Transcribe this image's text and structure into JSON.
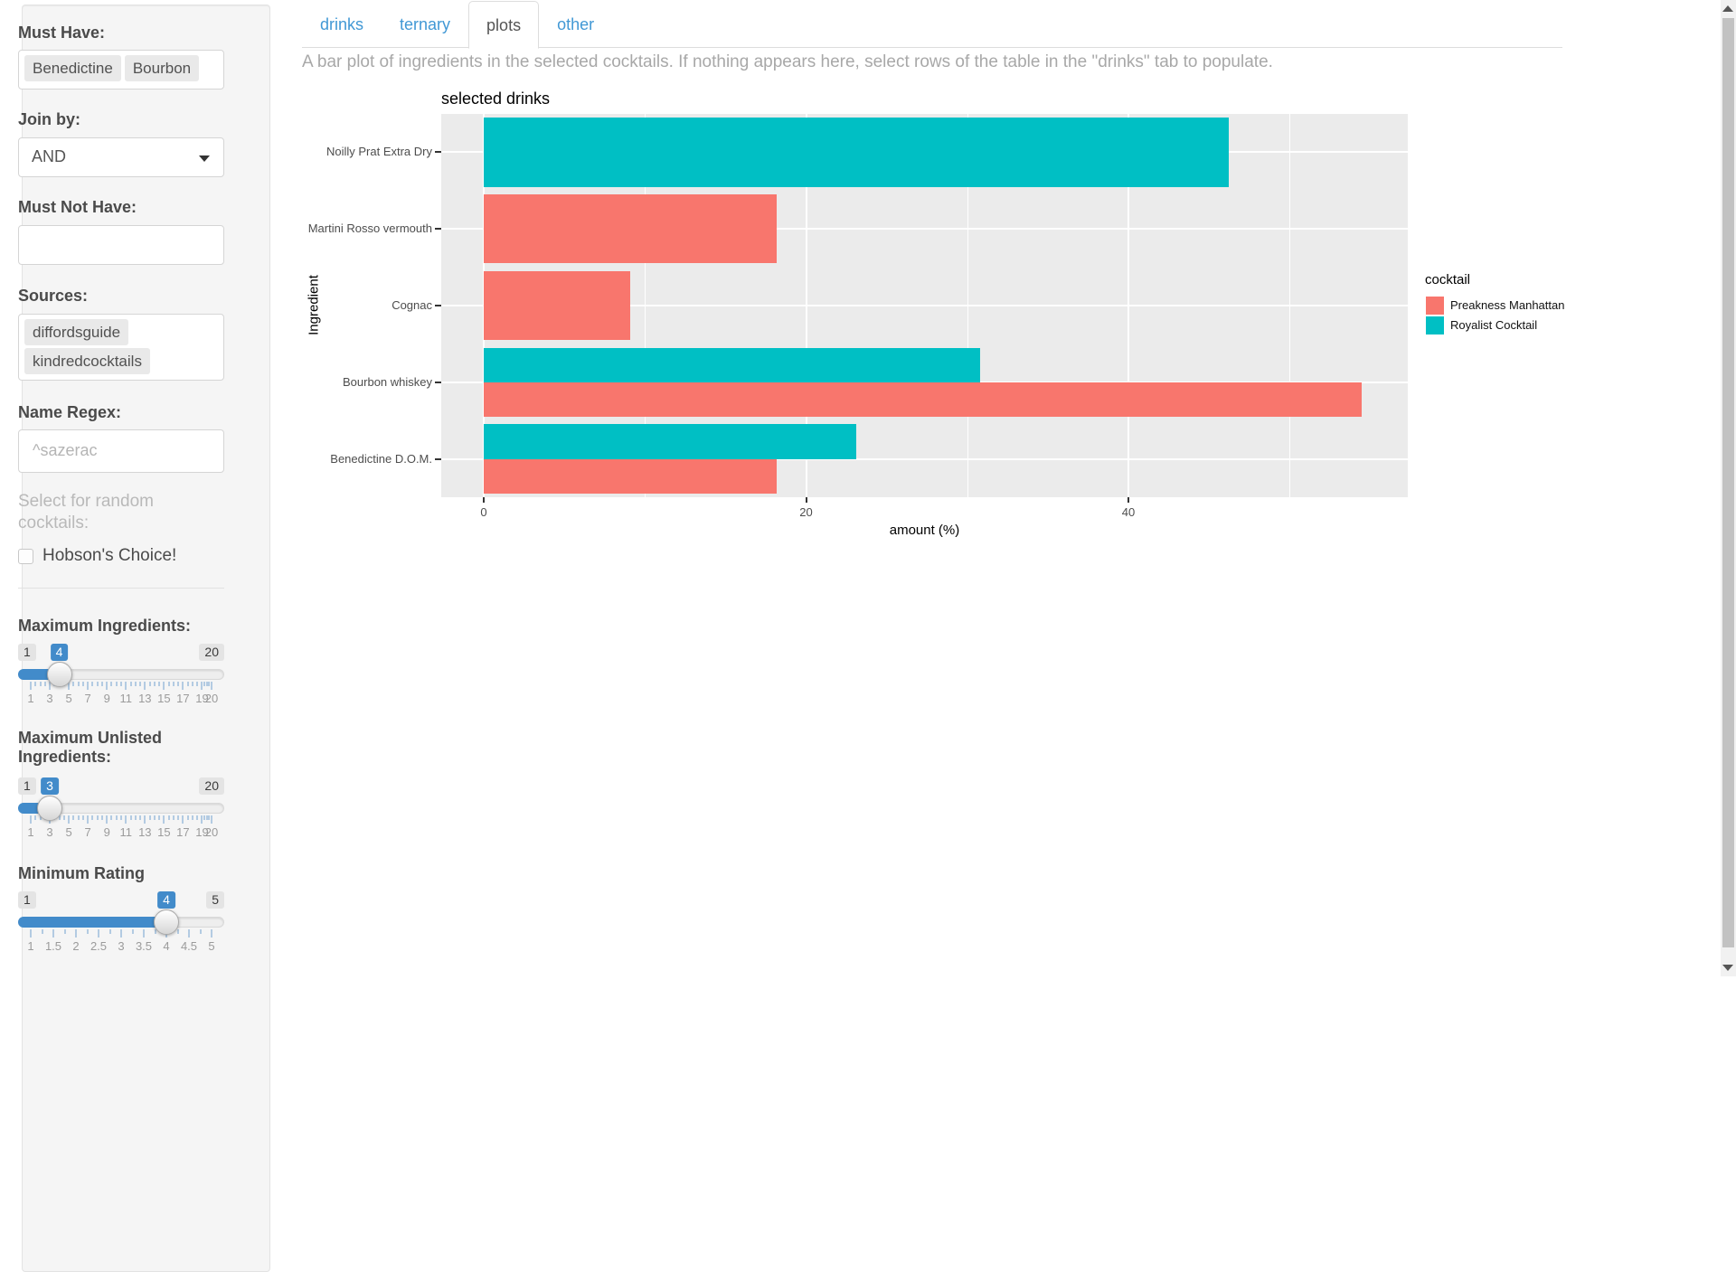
{
  "sidebar": {
    "must_have": {
      "label": "Must Have:",
      "tags": [
        "Benedictine",
        "Bourbon"
      ]
    },
    "join_by": {
      "label": "Join by:",
      "value": "AND"
    },
    "must_not_have": {
      "label": "Must Not Have:",
      "value": ""
    },
    "sources": {
      "label": "Sources:",
      "tags": [
        "diffordsguide",
        "kindredcocktails"
      ]
    },
    "name_regex": {
      "label": "Name Regex:",
      "value": "",
      "placeholder": "^sazerac"
    },
    "random_label": "Select for random cocktails:",
    "hobsons_choice": {
      "label": "Hobson's Choice!",
      "checked": false
    },
    "sliders": [
      {
        "label": "Maximum Ingredients:",
        "min": 1,
        "max": 20,
        "value": 4,
        "min_label": "1",
        "max_label": "20",
        "value_label": "4",
        "ticks": [
          "1",
          "3",
          "5",
          "7",
          "9",
          "11",
          "13",
          "15",
          "17",
          "19",
          "20"
        ]
      },
      {
        "label": "Maximum Unlisted Ingredients:",
        "min": 1,
        "max": 20,
        "value": 3,
        "min_label": "1",
        "max_label": "20",
        "value_label": "3",
        "ticks": [
          "1",
          "3",
          "5",
          "7",
          "9",
          "11",
          "13",
          "15",
          "17",
          "19",
          "20"
        ]
      },
      {
        "label": "Minimum Rating",
        "min": 1,
        "max": 5,
        "value": 4,
        "min_label": "1",
        "max_label": "5",
        "value_label": "4",
        "ticks": [
          "1",
          "1.5",
          "2",
          "2.5",
          "3",
          "3.5",
          "4",
          "4.5",
          "5"
        ]
      }
    ]
  },
  "tabs": [
    {
      "label": "drinks",
      "active": false
    },
    {
      "label": "ternary",
      "active": false
    },
    {
      "label": "plots",
      "active": true
    },
    {
      "label": "other",
      "active": false
    }
  ],
  "description": "A bar plot of ingredients in the selected cocktails. If nothing appears here, select rows of the table in the \"drinks\" tab to populate.",
  "chart_data": {
    "type": "bar",
    "orientation": "horizontal",
    "title": "selected drinks",
    "xlabel": "amount (%)",
    "ylabel": "Ingredient",
    "legend_title": "cocktail",
    "legend_position": "right",
    "panel_bg": "#EBEBEB",
    "categories": [
      "Noilly Prat Extra Dry",
      "Martini Rosso vermouth",
      "Cognac",
      "Bourbon whiskey",
      "Benedictine D.O.M."
    ],
    "series": [
      {
        "name": "Preakness Manhattan",
        "color": "#F8766D",
        "values": [
          null,
          18.2,
          9.1,
          54.5,
          18.2
        ]
      },
      {
        "name": "Royalist Cocktail",
        "color": "#00BFC4",
        "values": [
          46.2,
          null,
          null,
          30.8,
          23.1
        ]
      }
    ],
    "x_ticks": [
      0,
      20,
      40
    ],
    "x_minor": [
      10,
      30,
      50
    ],
    "xlim": [
      0,
      57.3
    ],
    "grid": true
  }
}
